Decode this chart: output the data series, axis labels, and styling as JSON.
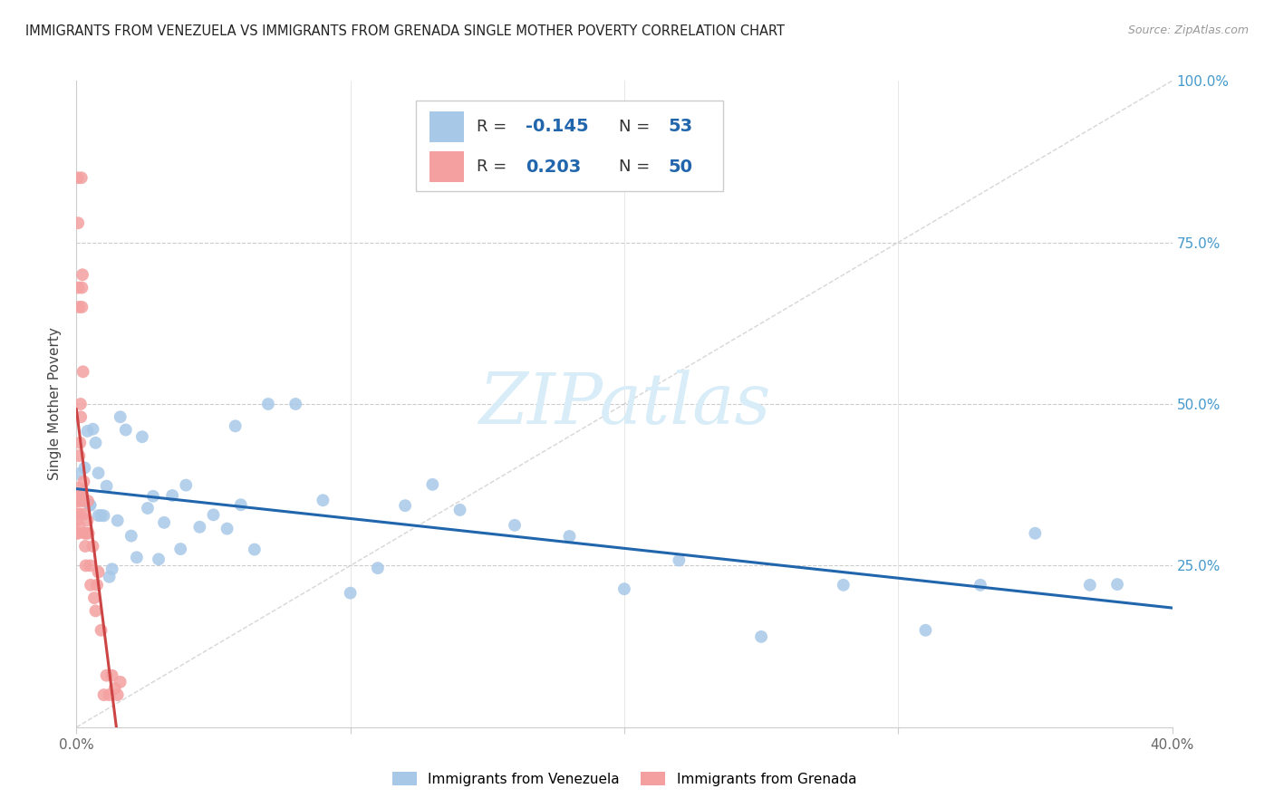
{
  "title": "IMMIGRANTS FROM VENEZUELA VS IMMIGRANTS FROM GRENADA SINGLE MOTHER POVERTY CORRELATION CHART",
  "source": "Source: ZipAtlas.com",
  "ylabel": "Single Mother Poverty",
  "background_color": "#ffffff",
  "blue_color": "#a8c8e8",
  "pink_color": "#f4a0a0",
  "blue_line_color": "#2166ac",
  "pink_line_color": "#cc4444",
  "diagonal_color": "#cccccc",
  "title_color": "#222222",
  "right_axis_color": "#4499cc",
  "legend_r1_val": "-0.145",
  "legend_n1_val": "53",
  "legend_r2_val": "0.203",
  "legend_n2_val": "50",
  "watermark_color": "#d8edf8",
  "xmax": 0.4,
  "ymax": 1.0
}
